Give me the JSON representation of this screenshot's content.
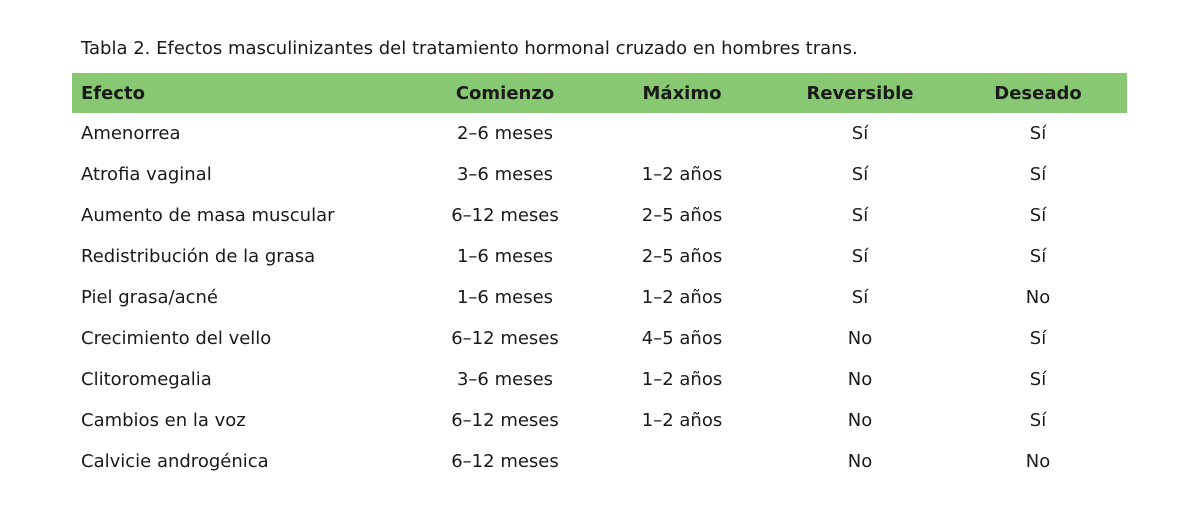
{
  "title": "Tabla 2. Efectos masculinizantes del tratamiento hormonal cruzado en hombres trans.",
  "table": {
    "header": [
      "Efecto",
      "Comienzo",
      "Máximo",
      "Reversible",
      "Deseado"
    ],
    "rows": [
      [
        "Amenorrea",
        "2–6 meses",
        null,
        "Sí",
        "Sí"
      ],
      [
        "Atrofia vaginal",
        "3–6 meses",
        "1–2 años",
        "Sí",
        "Sí"
      ],
      [
        "Aumento de masa muscular",
        "6–12 meses",
        "2–5 años",
        "Sí",
        "Sí"
      ],
      [
        "Redistribución de la grasa",
        "1–6 meses",
        "2–5 años",
        "Sí",
        "Sí"
      ],
      [
        "Piel grasa/acné",
        "1–6 meses",
        "1–2 años",
        "Sí",
        "No"
      ],
      [
        "Crecimiento del vello",
        "6–12 meses",
        "4–5 años",
        "No",
        "Sí"
      ],
      [
        "Clitoromegalia",
        "3–6 meses",
        "1–2 años",
        "No",
        "Sí"
      ],
      [
        "Cambios en la voz",
        "6–12 meses",
        "1–2 años",
        "No",
        "Sí"
      ],
      [
        "Calvicie androgénica",
        "6–12 meses",
        null,
        "No",
        "No"
      ]
    ]
  }
}
